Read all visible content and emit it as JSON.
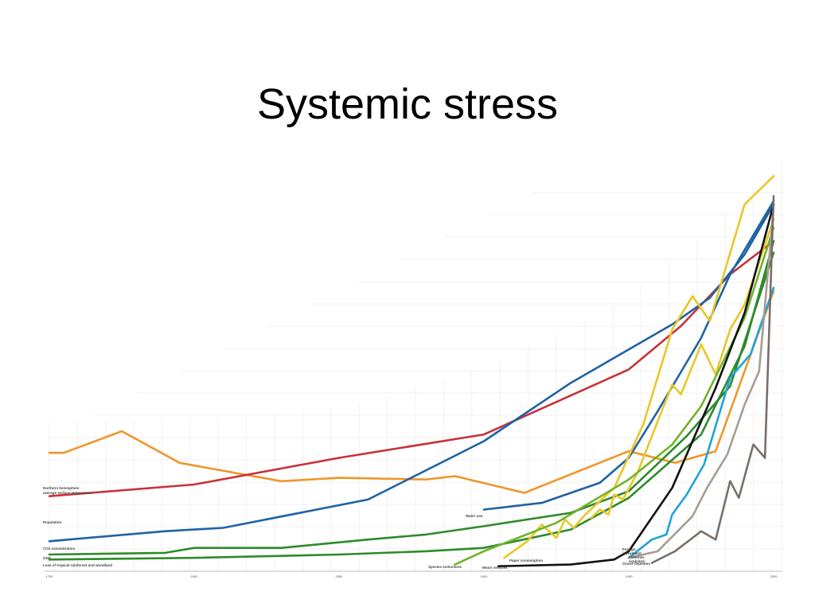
{
  "title": "Systemic stress",
  "chart_data": {
    "type": "line",
    "title": "",
    "xlabel": "",
    "ylabel": "",
    "xlim": [
      1750,
      2000
    ],
    "grid": true,
    "legend": "none",
    "x_ticks": [
      "1750",
      "1800",
      "1850",
      "1900",
      "1950",
      "2000"
    ],
    "series": [
      {
        "label": "Northern hemisphere average surface temperature",
        "color": "#f0962a",
        "points": [
          [
            1750,
            71
          ],
          [
            1755,
            71
          ],
          [
            1775,
            84
          ],
          [
            1795,
            65
          ],
          [
            1830,
            54
          ],
          [
            1850,
            56
          ],
          [
            1880,
            55
          ],
          [
            1890,
            57
          ],
          [
            1914,
            47
          ],
          [
            1950,
            72
          ],
          [
            1966,
            65
          ],
          [
            1980,
            72
          ],
          [
            2000,
            168
          ]
        ]
      },
      {
        "label": "Population",
        "color": "#c8323a",
        "points": [
          [
            1750,
            45
          ],
          [
            1800,
            52
          ],
          [
            1850,
            68
          ],
          [
            1900,
            82
          ],
          [
            1950,
            121
          ],
          [
            1968,
            147
          ],
          [
            1985,
            178
          ],
          [
            2000,
            198
          ]
        ]
      },
      {
        "label": "CO2 concentration",
        "color": "#1f62a5",
        "points": [
          [
            1750,
            18
          ],
          [
            1790,
            24
          ],
          [
            1810,
            26
          ],
          [
            1860,
            43
          ],
          [
            1900,
            78
          ],
          [
            1930,
            113
          ],
          [
            1950,
            133
          ],
          [
            1965,
            148
          ],
          [
            1978,
            164
          ],
          [
            1990,
            190
          ],
          [
            2000,
            220
          ]
        ]
      },
      {
        "label": "GDP",
        "color": "#2e8a2a",
        "points": [
          [
            1750,
            10
          ],
          [
            1790,
            11
          ],
          [
            1800,
            14
          ],
          [
            1830,
            14
          ],
          [
            1860,
            19
          ],
          [
            1880,
            22
          ],
          [
            1900,
            27
          ],
          [
            1930,
            35
          ],
          [
            1950,
            48
          ],
          [
            1970,
            81
          ],
          [
            1985,
            111
          ],
          [
            2000,
            191
          ]
        ]
      },
      {
        "label": "Loss of tropical rainforest and woodland",
        "color": "#2e8a2a",
        "points": [
          [
            1750,
            7
          ],
          [
            1800,
            8
          ],
          [
            1850,
            10
          ],
          [
            1880,
            12
          ],
          [
            1900,
            14
          ],
          [
            1930,
            25
          ],
          [
            1950,
            44
          ],
          [
            1975,
            82
          ],
          [
            1990,
            135
          ],
          [
            2000,
            198
          ]
        ]
      },
      {
        "label": "Water use",
        "color": "#1f62a5",
        "points": [
          [
            1900,
            37
          ],
          [
            1920,
            41
          ],
          [
            1940,
            53
          ],
          [
            1950,
            68
          ],
          [
            1960,
            96
          ],
          [
            1975,
            140
          ],
          [
            1985,
            178
          ],
          [
            2000,
            222
          ]
        ]
      },
      {
        "label": "Fisheries exploited",
        "color": "#e8c825",
        "points": [
          [
            1937,
            32
          ],
          [
            1940,
            37
          ],
          [
            1943,
            34
          ],
          [
            1945,
            46
          ],
          [
            1948,
            43
          ],
          [
            1953,
            59
          ],
          [
            1960,
            90
          ],
          [
            1965,
            112
          ],
          [
            1968,
            106
          ],
          [
            1975,
            136
          ],
          [
            1980,
            118
          ],
          [
            1985,
            145
          ],
          [
            1990,
            160
          ],
          [
            2000,
            211
          ]
        ]
      },
      {
        "label": "Paper consumption",
        "color": "#e8c825",
        "points": [
          [
            1907,
            8
          ],
          [
            1915,
            18
          ],
          [
            1920,
            28
          ],
          [
            1925,
            20
          ],
          [
            1928,
            31
          ],
          [
            1931,
            26
          ],
          [
            1935,
            34
          ],
          [
            1945,
            50
          ],
          [
            1955,
            88
          ],
          [
            1965,
            145
          ],
          [
            1972,
            165
          ],
          [
            1978,
            150
          ],
          [
            1990,
            220
          ],
          [
            2000,
            237
          ]
        ]
      },
      {
        "label": "Species extinctions",
        "color": "#6fb42a",
        "points": [
          [
            1890,
            4
          ],
          [
            1900,
            12
          ],
          [
            1925,
            29
          ],
          [
            1950,
            55
          ],
          [
            1965,
            76
          ],
          [
            1975,
            99
          ],
          [
            1990,
            152
          ],
          [
            2000,
            206
          ]
        ]
      },
      {
        "label": "Foreign investment",
        "color": "#1fa3d8",
        "points": [
          [
            1950,
            8
          ],
          [
            1958,
            19
          ],
          [
            1963,
            22
          ],
          [
            1965,
            34
          ],
          [
            1970,
            46
          ],
          [
            1976,
            64
          ],
          [
            1985,
            116
          ],
          [
            1992,
            130
          ],
          [
            2000,
            170
          ]
        ]
      },
      {
        "label": "Motor vehicles",
        "color": "#111111",
        "points": [
          [
            1905,
            3
          ],
          [
            1930,
            4
          ],
          [
            1945,
            7
          ],
          [
            1950,
            12
          ],
          [
            1965,
            50
          ],
          [
            1980,
            110
          ],
          [
            1990,
            155
          ],
          [
            2000,
            220
          ]
        ]
      },
      {
        "label": "Ozone depletion",
        "color": "#a89c92",
        "points": [
          [
            1950,
            8
          ],
          [
            1960,
            12
          ],
          [
            1972,
            33
          ],
          [
            1977,
            50
          ],
          [
            1984,
            70
          ],
          [
            1990,
            100
          ],
          [
            1995,
            120
          ],
          [
            2000,
            218
          ]
        ]
      },
      {
        "label": "",
        "color": "#7a6e66",
        "points": [
          [
            1958,
            5
          ],
          [
            1966,
            12
          ],
          [
            1972,
            20
          ],
          [
            1975,
            24
          ],
          [
            1980,
            19
          ],
          [
            1985,
            54
          ],
          [
            1988,
            44
          ],
          [
            1993,
            76
          ],
          [
            1997,
            68
          ],
          [
            2000,
            225
          ]
        ]
      }
    ],
    "labels": [
      {
        "text": "Northern hemisphere",
        "series": 0
      },
      {
        "text": "average surface temperature",
        "series": 0
      },
      {
        "text": "Population",
        "series": 1
      },
      {
        "text": "CO2 concentration",
        "series": 2
      },
      {
        "text": "GDP",
        "series": 3
      },
      {
        "text": "Loss of tropical rainforest and woodland",
        "series": 4
      },
      {
        "text": "Water use",
        "series": 5
      },
      {
        "text": "Fisheries",
        "series": 6
      },
      {
        "text": "exploited",
        "series": 6
      },
      {
        "text": "Paper consumption",
        "series": 7
      },
      {
        "text": "Species extinctions",
        "series": 8
      },
      {
        "text": "Foreign",
        "series": 9
      },
      {
        "text": "investment",
        "series": 9
      },
      {
        "text": "Motor vehicles",
        "series": 10
      },
      {
        "text": "Ozone depletion",
        "series": 11
      }
    ]
  }
}
